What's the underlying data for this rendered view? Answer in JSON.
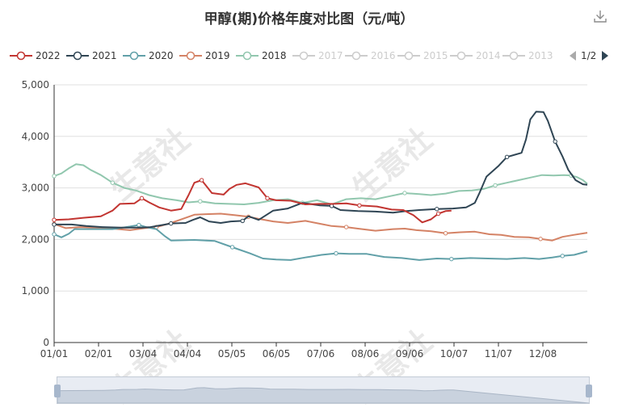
{
  "title": "甲醇(期)价格年度对比图（元/吨）",
  "watermark": "生意社",
  "toolbar": {
    "download_icon": "download-icon"
  },
  "legend": {
    "items": [
      {
        "label": "2022",
        "color": "#c23531",
        "active": true
      },
      {
        "label": "2021",
        "color": "#2f4554",
        "active": true
      },
      {
        "label": "2020",
        "color": "#61a0a8",
        "active": true
      },
      {
        "label": "2019",
        "color": "#d48265",
        "active": true
      },
      {
        "label": "2018",
        "color": "#91c7ae",
        "active": true
      },
      {
        "label": "2017",
        "color": "#cccccc",
        "active": false
      },
      {
        "label": "2016",
        "color": "#cccccc",
        "active": false
      },
      {
        "label": "2015",
        "color": "#cccccc",
        "active": false
      },
      {
        "label": "2014",
        "color": "#cccccc",
        "active": false
      },
      {
        "label": "2013",
        "color": "#cccccc",
        "active": false
      }
    ],
    "page_indicator": "1/2",
    "prev_icon": "triangle-left-icon",
    "next_icon": "triangle-right-icon"
  },
  "chart_data": {
    "type": "line",
    "title": "甲醇(期)价格年度对比图（元/吨）",
    "xlabel": "",
    "ylabel": "",
    "ylim": [
      0,
      5000
    ],
    "yticks": [
      "0",
      "1,000",
      "2,000",
      "3,000",
      "4,000",
      "5,000"
    ],
    "xticks": [
      "01/01",
      "02/01",
      "03/04",
      "04/04",
      "05/05",
      "06/05",
      "07/06",
      "08/06",
      "09/06",
      "10/07",
      "11/07",
      "12/08"
    ],
    "x_range_days": [
      0,
      365
    ],
    "grid": "horizontal",
    "legend_position": "top-left",
    "series": [
      {
        "name": "2022",
        "color": "#c23531",
        "points": [
          [
            0,
            2380
          ],
          [
            10,
            2390
          ],
          [
            20,
            2420
          ],
          [
            32,
            2450
          ],
          [
            40,
            2560
          ],
          [
            45,
            2690
          ],
          [
            55,
            2700
          ],
          [
            60,
            2800
          ],
          [
            65,
            2720
          ],
          [
            72,
            2620
          ],
          [
            80,
            2560
          ],
          [
            87,
            2590
          ],
          [
            92,
            2860
          ],
          [
            96,
            3100
          ],
          [
            101,
            3150
          ],
          [
            108,
            2900
          ],
          [
            116,
            2870
          ],
          [
            120,
            2980
          ],
          [
            125,
            3060
          ],
          [
            131,
            3090
          ],
          [
            140,
            3010
          ],
          [
            146,
            2800
          ],
          [
            152,
            2760
          ],
          [
            162,
            2750
          ],
          [
            172,
            2680
          ],
          [
            182,
            2690
          ],
          [
            191,
            2690
          ],
          [
            200,
            2700
          ],
          [
            209,
            2660
          ],
          [
            221,
            2640
          ],
          [
            231,
            2580
          ],
          [
            239,
            2570
          ],
          [
            246,
            2470
          ],
          [
            252,
            2330
          ],
          [
            258,
            2390
          ],
          [
            263,
            2500
          ],
          [
            268,
            2550
          ],
          [
            272,
            2560
          ]
        ]
      },
      {
        "name": "2021",
        "color": "#2f4554",
        "points": [
          [
            0,
            2290
          ],
          [
            12,
            2290
          ],
          [
            22,
            2260
          ],
          [
            33,
            2240
          ],
          [
            46,
            2230
          ],
          [
            60,
            2230
          ],
          [
            66,
            2240
          ],
          [
            80,
            2310
          ],
          [
            90,
            2320
          ],
          [
            95,
            2380
          ],
          [
            100,
            2430
          ],
          [
            106,
            2350
          ],
          [
            114,
            2320
          ],
          [
            121,
            2350
          ],
          [
            129,
            2360
          ],
          [
            133,
            2450
          ],
          [
            140,
            2380
          ],
          [
            150,
            2560
          ],
          [
            160,
            2600
          ],
          [
            170,
            2710
          ],
          [
            182,
            2660
          ],
          [
            190,
            2650
          ],
          [
            196,
            2570
          ],
          [
            208,
            2550
          ],
          [
            220,
            2540
          ],
          [
            232,
            2520
          ],
          [
            241,
            2550
          ],
          [
            250,
            2570
          ],
          [
            262,
            2590
          ],
          [
            273,
            2600
          ],
          [
            282,
            2620
          ],
          [
            288,
            2710
          ],
          [
            291,
            2890
          ],
          [
            296,
            3220
          ],
          [
            304,
            3420
          ],
          [
            310,
            3600
          ],
          [
            320,
            3680
          ],
          [
            323,
            3940
          ],
          [
            326,
            4330
          ],
          [
            330,
            4480
          ],
          [
            335,
            4470
          ],
          [
            338,
            4300
          ],
          [
            343,
            3900
          ],
          [
            348,
            3610
          ],
          [
            352,
            3350
          ],
          [
            357,
            3150
          ],
          [
            362,
            3070
          ],
          [
            365,
            3060
          ]
        ]
      },
      {
        "name": "2020",
        "color": "#61a0a8",
        "points": [
          [
            0,
            2100
          ],
          [
            5,
            2040
          ],
          [
            10,
            2110
          ],
          [
            14,
            2200
          ],
          [
            25,
            2200
          ],
          [
            40,
            2200
          ],
          [
            52,
            2250
          ],
          [
            58,
            2280
          ],
          [
            63,
            2240
          ],
          [
            70,
            2200
          ],
          [
            76,
            2060
          ],
          [
            80,
            1980
          ],
          [
            96,
            1990
          ],
          [
            110,
            1970
          ],
          [
            122,
            1850
          ],
          [
            134,
            1730
          ],
          [
            143,
            1630
          ],
          [
            152,
            1610
          ],
          [
            162,
            1600
          ],
          [
            172,
            1650
          ],
          [
            183,
            1700
          ],
          [
            193,
            1730
          ],
          [
            202,
            1720
          ],
          [
            214,
            1720
          ],
          [
            226,
            1660
          ],
          [
            238,
            1640
          ],
          [
            250,
            1600
          ],
          [
            262,
            1630
          ],
          [
            272,
            1620
          ],
          [
            285,
            1640
          ],
          [
            297,
            1630
          ],
          [
            310,
            1620
          ],
          [
            322,
            1640
          ],
          [
            332,
            1620
          ],
          [
            341,
            1650
          ],
          [
            348,
            1680
          ],
          [
            356,
            1700
          ],
          [
            365,
            1770
          ]
        ]
      },
      {
        "name": "2019",
        "color": "#d48265",
        "points": [
          [
            0,
            2300
          ],
          [
            8,
            2220
          ],
          [
            18,
            2240
          ],
          [
            28,
            2230
          ],
          [
            40,
            2210
          ],
          [
            52,
            2180
          ],
          [
            62,
            2220
          ],
          [
            70,
            2240
          ],
          [
            80,
            2320
          ],
          [
            88,
            2400
          ],
          [
            96,
            2480
          ],
          [
            104,
            2490
          ],
          [
            114,
            2500
          ],
          [
            124,
            2470
          ],
          [
            133,
            2440
          ],
          [
            140,
            2400
          ],
          [
            150,
            2350
          ],
          [
            160,
            2320
          ],
          [
            172,
            2360
          ],
          [
            181,
            2310
          ],
          [
            190,
            2260
          ],
          [
            200,
            2240
          ],
          [
            208,
            2210
          ],
          [
            220,
            2170
          ],
          [
            232,
            2200
          ],
          [
            240,
            2210
          ],
          [
            248,
            2180
          ],
          [
            258,
            2160
          ],
          [
            268,
            2120
          ],
          [
            278,
            2140
          ],
          [
            288,
            2150
          ],
          [
            298,
            2100
          ],
          [
            306,
            2090
          ],
          [
            315,
            2050
          ],
          [
            325,
            2040
          ],
          [
            333,
            2010
          ],
          [
            341,
            1980
          ],
          [
            348,
            2050
          ],
          [
            356,
            2090
          ],
          [
            365,
            2130
          ]
        ]
      },
      {
        "name": "2018",
        "color": "#91c7ae",
        "points": [
          [
            0,
            3230
          ],
          [
            5,
            3280
          ],
          [
            10,
            3380
          ],
          [
            15,
            3460
          ],
          [
            20,
            3440
          ],
          [
            25,
            3350
          ],
          [
            32,
            3250
          ],
          [
            40,
            3100
          ],
          [
            48,
            3000
          ],
          [
            56,
            2950
          ],
          [
            65,
            2860
          ],
          [
            74,
            2800
          ],
          [
            84,
            2760
          ],
          [
            92,
            2720
          ],
          [
            100,
            2740
          ],
          [
            110,
            2700
          ],
          [
            120,
            2690
          ],
          [
            130,
            2680
          ],
          [
            140,
            2710
          ],
          [
            150,
            2760
          ],
          [
            160,
            2780
          ],
          [
            170,
            2710
          ],
          [
            180,
            2760
          ],
          [
            190,
            2680
          ],
          [
            200,
            2780
          ],
          [
            210,
            2800
          ],
          [
            220,
            2780
          ],
          [
            230,
            2840
          ],
          [
            240,
            2900
          ],
          [
            250,
            2880
          ],
          [
            258,
            2860
          ],
          [
            268,
            2890
          ],
          [
            277,
            2940
          ],
          [
            286,
            2950
          ],
          [
            294,
            2980
          ],
          [
            302,
            3050
          ],
          [
            310,
            3100
          ],
          [
            318,
            3150
          ],
          [
            326,
            3200
          ],
          [
            334,
            3250
          ],
          [
            342,
            3240
          ],
          [
            349,
            3250
          ],
          [
            354,
            3240
          ],
          [
            358,
            3210
          ],
          [
            362,
            3150
          ],
          [
            365,
            3080
          ]
        ]
      }
    ]
  }
}
